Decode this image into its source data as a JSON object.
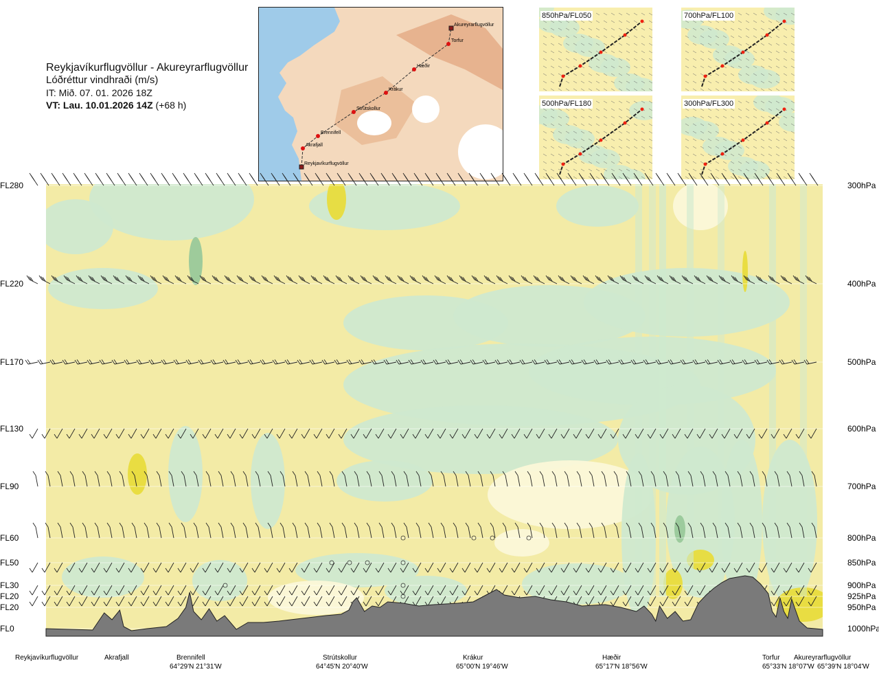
{
  "header": {
    "route": "Reykjavíkurflugvöllur - Akureyrarflugvöllur",
    "variable": "Lóðréttur vindhraði (m/s)",
    "issue_time": "IT: Mið. 07. 01. 2026 18Z",
    "valid_prefix": "VT: Lau. 10.01.2026 14Z",
    "valid_suffix": "(+68 h)"
  },
  "map": {
    "places": [
      "Akureyrarflugvöllur",
      "Torfur",
      "Hæðir",
      "Krákur",
      "Strútskollur",
      "Brennifell",
      "Akrafjall",
      "Reykjavíkurflugvöllur"
    ]
  },
  "insets": [
    {
      "label": "850hPa/FL050"
    },
    {
      "label": "700hPa/FL100"
    },
    {
      "label": "500hPa/FL180"
    },
    {
      "label": "300hPa/FL300"
    }
  ],
  "chart_data": {
    "type": "heatmap",
    "title": "Reykjavíkurflugvöllur - Akureyrarflugvöllur",
    "subtitle": "Lóðréttur vindhraði (m/s)",
    "x_axis": "distance along route",
    "levels": [
      {
        "fl": "FL280",
        "hpa": "300hPa",
        "p": 300
      },
      {
        "fl": "FL220",
        "hpa": "400hPa",
        "p": 400
      },
      {
        "fl": "FL170",
        "hpa": "500hPa",
        "p": 500
      },
      {
        "fl": "FL130",
        "hpa": "600hPa",
        "p": 600
      },
      {
        "fl": "FL90",
        "hpa": "700hPa",
        "p": 700
      },
      {
        "fl": "FL60",
        "hpa": "800hPa",
        "p": 800
      },
      {
        "fl": "FL50",
        "hpa": "850hPa",
        "p": 850
      },
      {
        "fl": "FL30",
        "hpa": "900hPa",
        "p": 900
      },
      {
        "fl": "FL20",
        "hpa": "925hPa",
        "p": 925
      },
      {
        "fl": "FL20",
        "hpa": "950hPa",
        "p": 950
      },
      {
        "fl": "FL0",
        "hpa": "1000hPa",
        "p": 1000
      }
    ],
    "stations": [
      {
        "name": "Reykjavíkurflugvöllur",
        "coord": "",
        "pos": 0.0
      },
      {
        "name": "Akrafjall",
        "coord": "",
        "pos": 0.09
      },
      {
        "name": "Brennifell",
        "coord": "64°29'N 21°31'W",
        "pos": 0.19
      },
      {
        "name": "Strútskollur",
        "coord": "64°45'N 20°40'W",
        "pos": 0.39
      },
      {
        "name": "Krákur",
        "coord": "65°00'N 19°46'W",
        "pos": 0.57
      },
      {
        "name": "Hæðir",
        "coord": "65°17'N 18°56'W",
        "pos": 0.75
      },
      {
        "name": "Torfur",
        "coord": "65°33'N 18°07'W",
        "pos": 0.94
      },
      {
        "name": "Akureyrarflugvöllur",
        "coord": "65°39'N 18°04'W",
        "pos": 0.985
      }
    ],
    "colors": {
      "strong_up": "#e8dc3c",
      "up": "#f3eba6",
      "weak": "#fbf8d8",
      "down": "#cfe9cf",
      "strong_down": "#99c99a",
      "terrain": "#7a7a7a"
    }
  }
}
